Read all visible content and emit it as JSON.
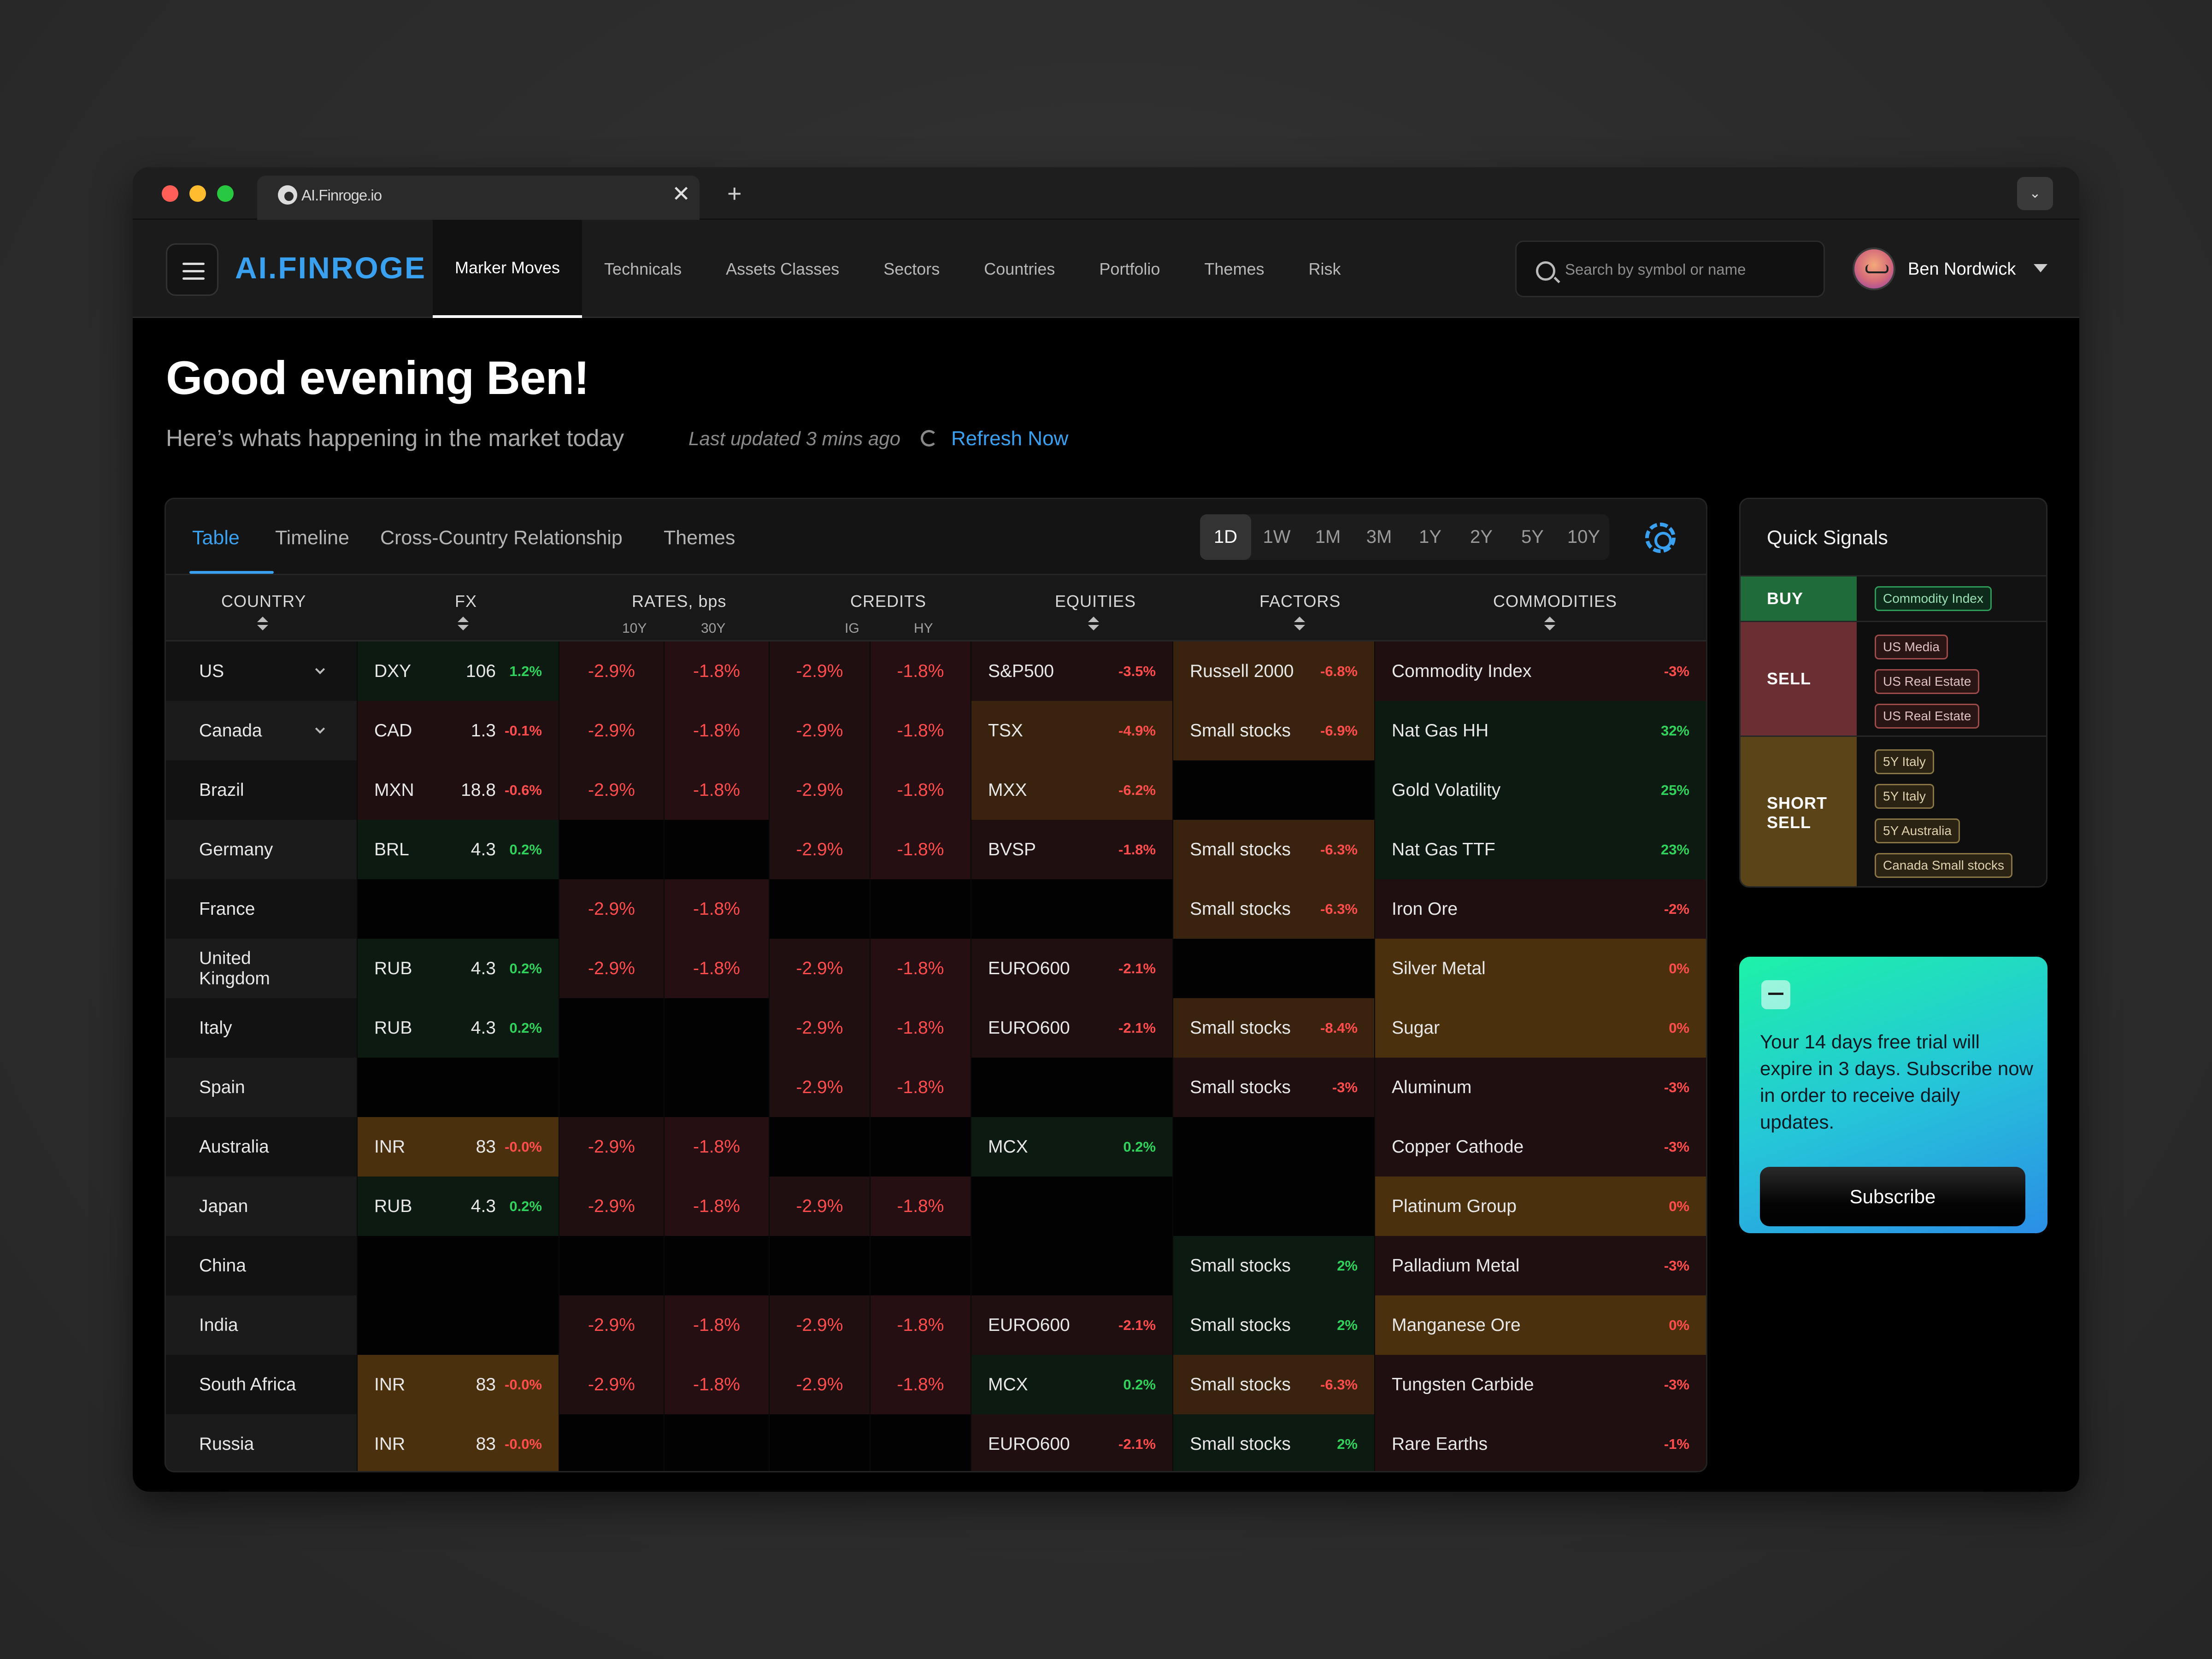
{
  "browser": {
    "tab_title": "AI.Finroge.io",
    "close": "✕",
    "new_tab": "+",
    "menu_caret": "⌄"
  },
  "nav": {
    "logo": "AI.FINROGE",
    "links": [
      "Marker Moves",
      "Technicals",
      "Assets Classes",
      "Sectors",
      "Countries",
      "Portfolio",
      "Themes",
      "Risk"
    ],
    "active_link": "Marker Moves",
    "search_placeholder": "Search by symbol or name",
    "user_name": "Ben Nordwick"
  },
  "header": {
    "greeting": "Good evening Ben!",
    "subtitle": "Here’s whats happening in the market today",
    "last_updated": "Last updated 3 mins ago",
    "refresh": "Refresh Now"
  },
  "panel": {
    "tabs": [
      "Table",
      "Timeline",
      "Cross-Country Relationship",
      "Themes"
    ],
    "active_tab": "Table",
    "periods": [
      "1D",
      "1W",
      "1M",
      "3M",
      "1Y",
      "2Y",
      "5Y",
      "10Y"
    ],
    "active_period": "1D",
    "columns": {
      "country": "COUNTRY",
      "fx": "FX",
      "rates": "RATES, bps",
      "rates_sub": [
        "10Y",
        "30Y"
      ],
      "credits": "CREDITS",
      "credits_sub": [
        "IG",
        "HY"
      ],
      "equities": "EQUITIES",
      "factors": "FACTORS",
      "commodities": "COMMODITIES"
    },
    "rows": [
      {
        "country": "US",
        "expand": true,
        "fx": [
          "DXY",
          "106",
          "1.2%"
        ],
        "rates": [
          "-2.9%",
          "-1.8%"
        ],
        "credits": [
          "-2.9%",
          "-1.8%"
        ],
        "equities": [
          "S&P500",
          "-3.5%"
        ],
        "factors": [
          "Russell 2000",
          "-6.8%"
        ],
        "commodities": [
          "Commodity Index",
          "-3%"
        ]
      },
      {
        "country": "Canada",
        "expand": true,
        "fx": [
          "CAD",
          "1.3",
          "-0.1%"
        ],
        "rates": [
          "-2.9%",
          "-1.8%"
        ],
        "credits": [
          "-2.9%",
          "-1.8%"
        ],
        "equities": [
          "TSX",
          "-4.9%"
        ],
        "factors": [
          "Small stocks",
          "-6.9%"
        ],
        "commodities": [
          "Nat Gas HH",
          "32%"
        ]
      },
      {
        "country": "Brazil",
        "fx": [
          "MXN",
          "18.8",
          "-0.6%"
        ],
        "rates": [
          "-2.9%",
          "-1.8%"
        ],
        "credits": [
          "-2.9%",
          "-1.8%"
        ],
        "equities": [
          "MXX",
          "-6.2%"
        ],
        "factors": null,
        "commodities": [
          "Gold Volatility",
          "25%"
        ]
      },
      {
        "country": "Germany",
        "fx": [
          "BRL",
          "4.3",
          "0.2%"
        ],
        "rates": null,
        "credits": [
          "-2.9%",
          "-1.8%"
        ],
        "equities": [
          "BVSP",
          "-1.8%"
        ],
        "factors": [
          "Small stocks",
          "-6.3%"
        ],
        "commodities": [
          "Nat Gas TTF",
          "23%"
        ]
      },
      {
        "country": "France",
        "fx": null,
        "rates": [
          "-2.9%",
          "-1.8%"
        ],
        "credits": null,
        "equities": null,
        "factors": [
          "Small stocks",
          "-6.3%"
        ],
        "commodities": [
          "Iron Ore",
          "-2%"
        ]
      },
      {
        "country": "United Kingdom",
        "fx": [
          "RUB",
          "4.3",
          "0.2%"
        ],
        "rates": [
          "-2.9%",
          "-1.8%"
        ],
        "credits": [
          "-2.9%",
          "-1.8%"
        ],
        "equities": [
          "EURO600",
          "-2.1%"
        ],
        "factors": null,
        "commodities": [
          "Silver Metal",
          "0%"
        ]
      },
      {
        "country": "Italy",
        "fx": [
          "RUB",
          "4.3",
          "0.2%"
        ],
        "rates": null,
        "credits": [
          "-2.9%",
          "-1.8%"
        ],
        "equities": [
          "EURO600",
          "-2.1%"
        ],
        "factors": [
          "Small stocks",
          "-8.4%"
        ],
        "commodities": [
          "Sugar",
          "0%"
        ]
      },
      {
        "country": "Spain",
        "fx": null,
        "rates": null,
        "credits": [
          "-2.9%",
          "-1.8%"
        ],
        "equities": null,
        "factors": [
          "Small stocks",
          "-3%"
        ],
        "commodities": [
          "Aluminum",
          "-3%"
        ]
      },
      {
        "country": "Australia",
        "fx": [
          "INR",
          "83",
          "-0.0%"
        ],
        "rates": [
          "-2.9%",
          "-1.8%"
        ],
        "credits": null,
        "equities": [
          "MCX",
          "0.2%"
        ],
        "factors": null,
        "commodities": [
          "Copper Cathode",
          "-3%"
        ]
      },
      {
        "country": "Japan",
        "fx": [
          "RUB",
          "4.3",
          "0.2%"
        ],
        "rates": [
          "-2.9%",
          "-1.8%"
        ],
        "credits": [
          "-2.9%",
          "-1.8%"
        ],
        "equities": null,
        "factors": null,
        "commodities": [
          "Platinum Group",
          "0%"
        ]
      },
      {
        "country": "China",
        "fx": null,
        "rates": null,
        "credits": null,
        "equities": null,
        "factors": [
          "Small stocks",
          "2%"
        ],
        "commodities": [
          "Palladium Metal",
          "-3%"
        ]
      },
      {
        "country": "India",
        "fx": null,
        "rates": [
          "-2.9%",
          "-1.8%"
        ],
        "credits": [
          "-2.9%",
          "-1.8%"
        ],
        "equities": [
          "EURO600",
          "-2.1%"
        ],
        "factors": [
          "Small stocks",
          "2%"
        ],
        "commodities": [
          "Manganese Ore",
          "0%"
        ]
      },
      {
        "country": "South Africa",
        "fx": [
          "INR",
          "83",
          "-0.0%"
        ],
        "rates": [
          "-2.9%",
          "-1.8%"
        ],
        "credits": [
          "-2.9%",
          "-1.8%"
        ],
        "equities": [
          "MCX",
          "0.2%"
        ],
        "factors": [
          "Small stocks",
          "-6.3%"
        ],
        "commodities": [
          "Tungsten Carbide",
          "-3%"
        ]
      },
      {
        "country": "Russia",
        "fx": [
          "INR",
          "83",
          "-0.0%"
        ],
        "rates": null,
        "credits": null,
        "equities": [
          "EURO600",
          "-2.1%"
        ],
        "factors": [
          "Small stocks",
          "2%"
        ],
        "commodities": [
          "Rare Earths",
          "-1%"
        ]
      }
    ]
  },
  "quick_signals": {
    "title": "Quick Signals",
    "groups": [
      {
        "label": "BUY",
        "kind": "buy",
        "items": [
          "Commodity Index"
        ]
      },
      {
        "label": "SELL",
        "kind": "sell",
        "items": [
          "US Media",
          "US Real Estate",
          "US Real Estate"
        ]
      },
      {
        "label": "SHORT SELL",
        "kind": "short",
        "items": [
          "5Y Italy",
          "5Y Italy",
          "5Y Australia",
          "Canada Small stocks"
        ]
      }
    ]
  },
  "trial": {
    "text": "Your 14 days free trial will expire in 3 days. Subscribe now in order to receive daily updates.",
    "button": "Subscribe"
  },
  "colors": {
    "accent": "#3aa0f0",
    "negative": "#ff4c4c",
    "positive": "#2fd25a",
    "buy_bg": "#1f6b3a",
    "sell_bg": "#6b2e33",
    "short_bg": "#5a4418"
  }
}
